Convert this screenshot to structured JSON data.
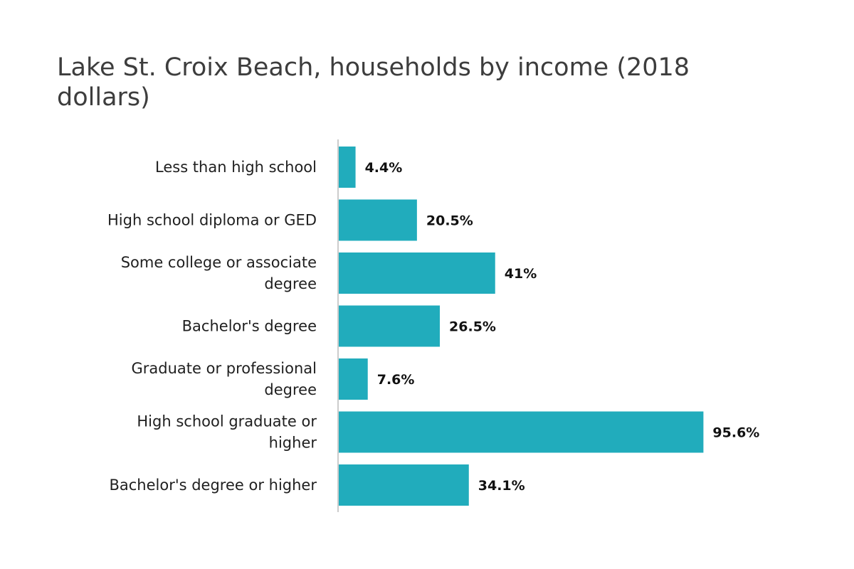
{
  "chart_data": {
    "type": "bar",
    "orientation": "horizontal",
    "title": "Lake St. Croix Beach, households by income (2018 dollars)",
    "xlabel": "",
    "ylabel": "",
    "categories": [
      "Less than high school",
      "High school diploma or GED",
      "Some college or associate degree",
      "Bachelor's degree",
      "Graduate or professional degree",
      "High school graduate or higher",
      "Bachelor's degree or higher"
    ],
    "values": [
      4.4,
      20.5,
      41,
      26.5,
      7.6,
      95.6,
      34.1
    ],
    "value_labels": [
      "4.4%",
      "20.5%",
      "41%",
      "26.5%",
      "7.6%",
      "95.6%",
      "34.1%"
    ],
    "xlim": [
      0,
      100
    ],
    "grid": false,
    "legend": "none",
    "colors": {
      "bar": "#21acbc",
      "axis": "#cccccc",
      "title": "#3d3d3d"
    }
  }
}
